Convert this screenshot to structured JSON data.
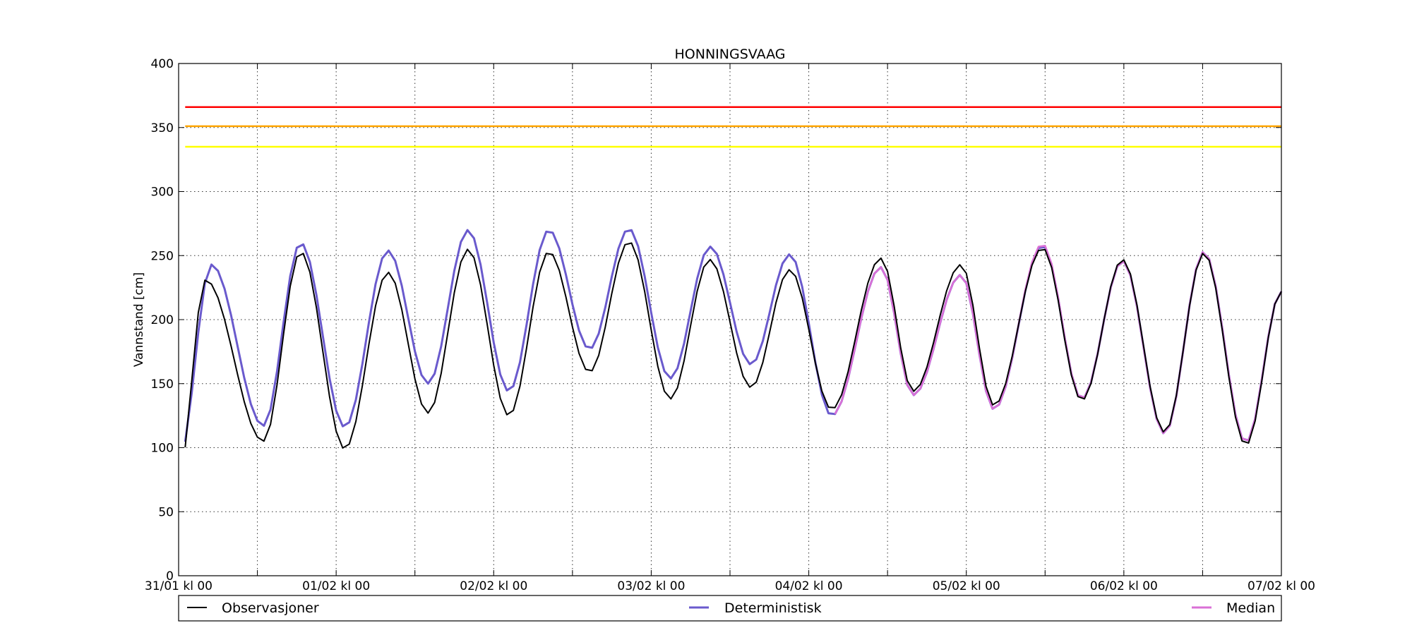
{
  "chart_data": {
    "type": "line",
    "title": "HONNINGSVAAG",
    "xlabel": "",
    "ylabel": "Vannstand [cm]",
    "ylim": [
      0,
      400
    ],
    "xlim": [
      0,
      168
    ],
    "grid": true,
    "y_ticks": [
      0,
      50,
      100,
      150,
      200,
      250,
      300,
      350,
      400
    ],
    "x_ticks": [
      {
        "t": 0,
        "label": "31/01 kl 00"
      },
      {
        "t": 24,
        "label": "01/02 kl 00"
      },
      {
        "t": 48,
        "label": "02/02 kl 00"
      },
      {
        "t": 72,
        "label": "03/02 kl 00"
      },
      {
        "t": 96,
        "label": "04/02 kl 00"
      },
      {
        "t": 120,
        "label": "05/02 kl 00"
      },
      {
        "t": 144,
        "label": "06/02 kl 00"
      },
      {
        "t": 168,
        "label": "07/02 kl 00"
      }
    ],
    "x_minor_ticks": [
      12,
      36,
      60,
      84,
      108,
      132,
      156
    ],
    "hlines": [
      {
        "value": 366,
        "color": "#ff0000"
      },
      {
        "value": 351,
        "color": "#ffa500"
      },
      {
        "value": 335,
        "color": "#ffff00"
      }
    ],
    "tide_period_hours": 12.42,
    "legend_placement": "bottom",
    "series": [
      {
        "name": "Observasjoner",
        "color": "#000000",
        "x_first": 1,
        "highs": [
          {
            "t": 4.1,
            "v": 231
          },
          {
            "t": 18.6,
            "v": 253
          },
          {
            "t": 31.9,
            "v": 237
          },
          {
            "t": 44.1,
            "v": 255
          },
          {
            "t": 56.4,
            "v": 253
          },
          {
            "t": 68.6,
            "v": 261
          },
          {
            "t": 80.9,
            "v": 247
          },
          {
            "t": 93.1,
            "v": 239
          },
          {
            "t": 107.0,
            "v": 248
          },
          {
            "t": 119.2,
            "v": 243
          },
          {
            "t": 131.6,
            "v": 256
          },
          {
            "t": 143.8,
            "v": 247
          },
          {
            "t": 156.2,
            "v": 252
          }
        ],
        "lows": [
          {
            "t": 0,
            "v": 79
          },
          {
            "t": 12.9,
            "v": 105
          },
          {
            "t": 25.3,
            "v": 99
          },
          {
            "t": 38.0,
            "v": 127
          },
          {
            "t": 50.3,
            "v": 125
          },
          {
            "t": 62.6,
            "v": 159
          },
          {
            "t": 74.9,
            "v": 138
          },
          {
            "t": 87.2,
            "v": 147
          },
          {
            "t": 99.5,
            "v": 130
          },
          {
            "t": 111.9,
            "v": 144
          },
          {
            "t": 124.2,
            "v": 133
          },
          {
            "t": 137.6,
            "v": 137
          },
          {
            "t": 150.2,
            "v": 112
          },
          {
            "t": 162.6,
            "v": 102
          },
          {
            "t": 168,
            "v": 222
          }
        ]
      },
      {
        "name": "Deterministisk",
        "color": "#6a5acd",
        "x_first": 1,
        "highs": [
          {
            "t": 5.0,
            "v": 243
          },
          {
            "t": 18.6,
            "v": 260
          },
          {
            "t": 31.9,
            "v": 254
          },
          {
            "t": 44.1,
            "v": 270
          },
          {
            "t": 56.4,
            "v": 270
          },
          {
            "t": 68.6,
            "v": 271
          },
          {
            "t": 81.0,
            "v": 257
          },
          {
            "t": 93.1,
            "v": 251
          },
          {
            "t": 107.0,
            "v": 241
          },
          {
            "t": 119.2,
            "v": 235
          },
          {
            "t": 131.6,
            "v": 258
          },
          {
            "t": 143.8,
            "v": 246
          },
          {
            "t": 156.2,
            "v": 253
          }
        ],
        "lows": [
          {
            "t": 0,
            "v": 90
          },
          {
            "t": 12.9,
            "v": 117
          },
          {
            "t": 25.3,
            "v": 116
          },
          {
            "t": 38.0,
            "v": 150
          },
          {
            "t": 50.3,
            "v": 144
          },
          {
            "t": 62.6,
            "v": 177
          },
          {
            "t": 74.9,
            "v": 154
          },
          {
            "t": 87.2,
            "v": 165
          },
          {
            "t": 99.5,
            "v": 125
          },
          {
            "t": 111.9,
            "v": 141
          },
          {
            "t": 124.2,
            "v": 130
          },
          {
            "t": 137.6,
            "v": 138
          },
          {
            "t": 150.2,
            "v": 111
          },
          {
            "t": 162.6,
            "v": 104
          },
          {
            "t": 168,
            "v": 222
          }
        ]
      },
      {
        "name": "Median",
        "color": "#da70d6",
        "x_first": 100,
        "highs": [
          {
            "t": 107.0,
            "v": 241
          },
          {
            "t": 119.2,
            "v": 235
          },
          {
            "t": 131.6,
            "v": 259
          },
          {
            "t": 143.8,
            "v": 246
          },
          {
            "t": 156.2,
            "v": 253
          }
        ],
        "lows": [
          {
            "t": 99.5,
            "v": 125
          },
          {
            "t": 111.9,
            "v": 141
          },
          {
            "t": 124.2,
            "v": 130
          },
          {
            "t": 137.6,
            "v": 138
          },
          {
            "t": 150.2,
            "v": 111
          },
          {
            "t": 162.6,
            "v": 104
          },
          {
            "t": 168,
            "v": 222
          }
        ]
      }
    ]
  }
}
